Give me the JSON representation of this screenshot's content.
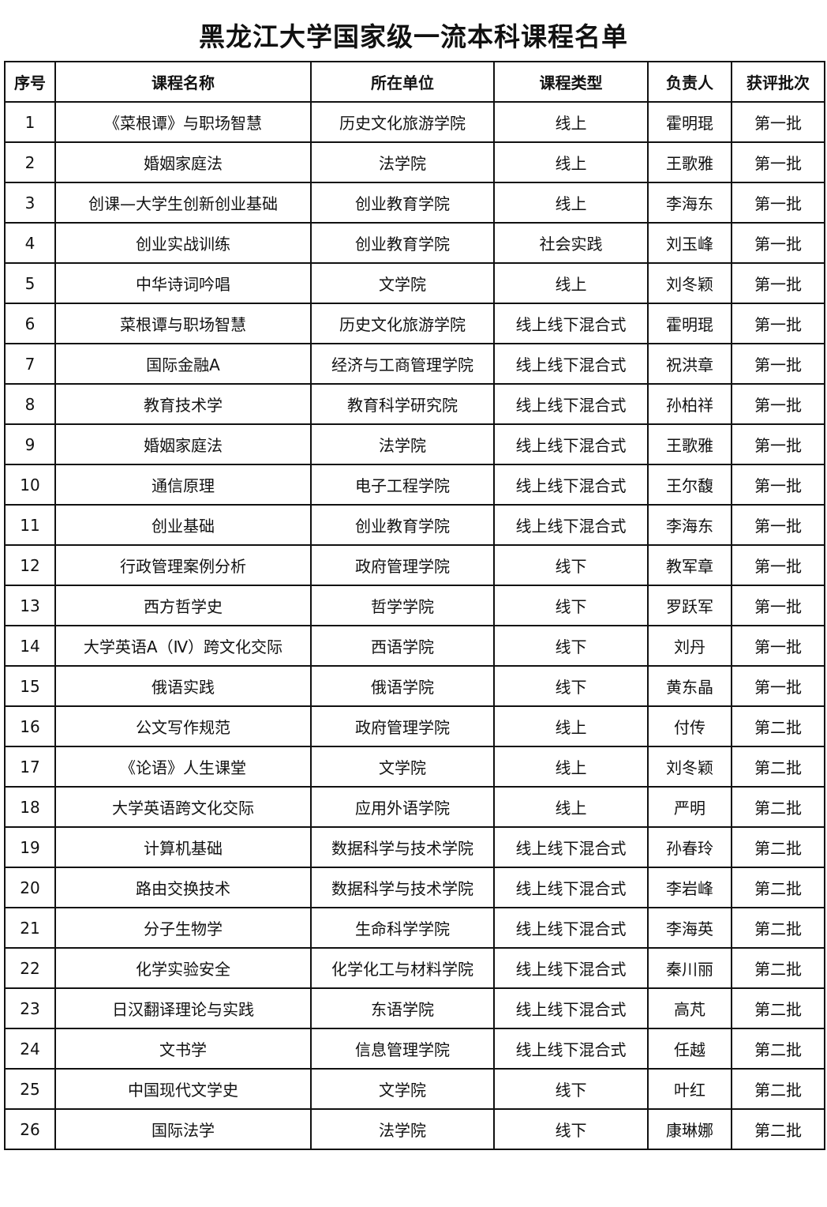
{
  "title": "黑龙江大学国家级一流本科课程名单",
  "headers": [
    "序号",
    "课程名称",
    "所在单位",
    "课程类型",
    "负责人",
    "获评批次"
  ],
  "rows": [
    [
      "1",
      "《菜根谭》与职场智慧",
      "历史文化旅游学院",
      "线上",
      "霍明琨",
      "第一批"
    ],
    [
      "2",
      "婚姻家庭法",
      "法学院",
      "线上",
      "王歌雅",
      "第一批"
    ],
    [
      "3",
      "创课—大学生创新创业基础",
      "创业教育学院",
      "线上",
      "李海东",
      "第一批"
    ],
    [
      "4",
      "创业实战训练",
      "创业教育学院",
      "社会实践",
      "刘玉峰",
      "第一批"
    ],
    [
      "5",
      "中华诗词吟唱",
      "文学院",
      "线上",
      "刘冬颖",
      "第一批"
    ],
    [
      "6",
      "菜根谭与职场智慧",
      "历史文化旅游学院",
      "线上线下混合式",
      "霍明琨",
      "第一批"
    ],
    [
      "7",
      "国际金融A",
      "经济与工商管理学院",
      "线上线下混合式",
      "祝洪章",
      "第一批"
    ],
    [
      "8",
      "教育技术学",
      "教育科学研究院",
      "线上线下混合式",
      "孙柏祥",
      "第一批"
    ],
    [
      "9",
      "婚姻家庭法",
      "法学院",
      "线上线下混合式",
      "王歌雅",
      "第一批"
    ],
    [
      "10",
      "通信原理",
      "电子工程学院",
      "线上线下混合式",
      "王尔馥",
      "第一批"
    ],
    [
      "11",
      "创业基础",
      "创业教育学院",
      "线上线下混合式",
      "李海东",
      "第一批"
    ],
    [
      "12",
      "行政管理案例分析",
      "政府管理学院",
      "线下",
      "教军章",
      "第一批"
    ],
    [
      "13",
      "西方哲学史",
      "哲学学院",
      "线下",
      "罗跃军",
      "第一批"
    ],
    [
      "14",
      "大学英语A（Ⅳ）跨文化交际",
      "西语学院",
      "线下",
      "刘丹",
      "第一批"
    ],
    [
      "15",
      "俄语实践",
      "俄语学院",
      "线下",
      "黄东晶",
      "第一批"
    ],
    [
      "16",
      "公文写作规范",
      "政府管理学院",
      "线上",
      "付传",
      "第二批"
    ],
    [
      "17",
      "《论语》人生课堂",
      "文学院",
      "线上",
      "刘冬颖",
      "第二批"
    ],
    [
      "18",
      "大学英语跨文化交际",
      "应用外语学院",
      "线上",
      "严明",
      "第二批"
    ],
    [
      "19",
      "计算机基础",
      "数据科学与技术学院",
      "线上线下混合式",
      "孙春玲",
      "第二批"
    ],
    [
      "20",
      "路由交换技术",
      "数据科学与技术学院",
      "线上线下混合式",
      "李岩峰",
      "第二批"
    ],
    [
      "21",
      "分子生物学",
      "生命科学学院",
      "线上线下混合式",
      "李海英",
      "第二批"
    ],
    [
      "22",
      "化学实验安全",
      "化学化工与材料学院",
      "线上线下混合式",
      "秦川丽",
      "第二批"
    ],
    [
      "23",
      "日汉翻译理论与实践",
      "东语学院",
      "线上线下混合式",
      "高芃",
      "第二批"
    ],
    [
      "24",
      "文书学",
      "信息管理学院",
      "线上线下混合式",
      "任越",
      "第二批"
    ],
    [
      "25",
      "中国现代文学史",
      "文学院",
      "线下",
      "叶红",
      "第二批"
    ],
    [
      "26",
      "国际法学",
      "法学院",
      "线下",
      "康琳娜",
      "第二批"
    ]
  ]
}
